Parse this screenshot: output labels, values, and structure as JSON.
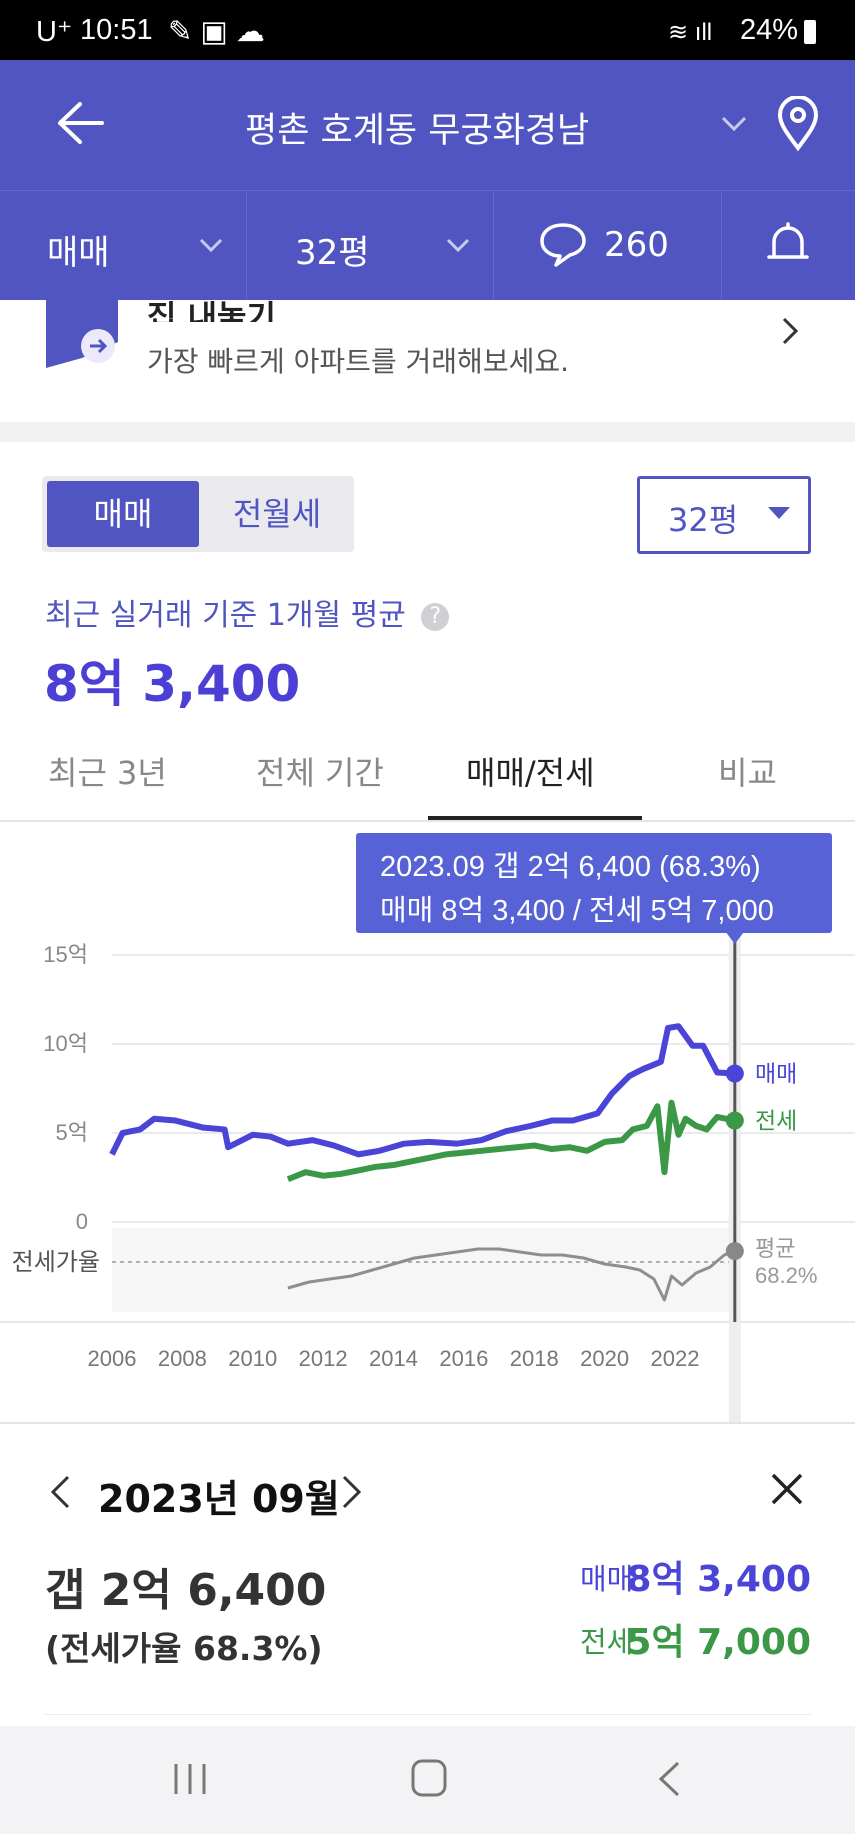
{
  "status_bar": {
    "time": "10:51",
    "carrier": "U⁺",
    "battery": "24%"
  },
  "header": {
    "title": "평촌 호계동 무궁화경남"
  },
  "subbar": {
    "trade_type": "매매",
    "size": "32평",
    "comments": "260"
  },
  "banner": {
    "title": "집 내놓기",
    "subtitle": "가장 빠르게 아파트를 거래해보세요."
  },
  "price_section": {
    "toggle": {
      "active": "매매",
      "inactive": "전월세"
    },
    "size_select": "32평",
    "caption": "최근 실거래 기준 1개월 평균",
    "value": "8억 3,400"
  },
  "period_tabs": [
    {
      "label": "최근 3년",
      "active": false
    },
    {
      "label": "전체 기간",
      "active": false
    },
    {
      "label": "매매/전세",
      "active": true
    },
    {
      "label": "비교",
      "active": false
    }
  ],
  "tooltip": {
    "line1": "2023.09  갭 2억 6,400 (68.3%)",
    "line2": "매매 8억 3,400 / 전세 5억 7,000"
  },
  "chart_data": {
    "type": "line",
    "title": "",
    "y_ticks": [
      "15억",
      "10억",
      "5억",
      "0"
    ],
    "ylim": [
      0,
      15
    ],
    "x_ticks": [
      "2006",
      "2008",
      "2010",
      "2012",
      "2014",
      "2016",
      "2018",
      "2020",
      "2022"
    ],
    "series": [
      {
        "name": "매매",
        "color": "#4a45d6",
        "x": [
          2006.0,
          2006.3,
          2006.8,
          2007.2,
          2007.8,
          2008.6,
          2009.2,
          2009.3,
          2010.0,
          2010.5,
          2011.0,
          2011.7,
          2012.3,
          2013.0,
          2013.6,
          2014.3,
          2015.0,
          2015.8,
          2016.5,
          2017.2,
          2017.9,
          2018.5,
          2019.1,
          2019.8,
          2020.2,
          2020.7,
          2021.1,
          2021.6,
          2021.8,
          2022.1,
          2022.5,
          2022.8,
          2023.2,
          2023.7
        ],
        "values": [
          3.8,
          5.0,
          5.2,
          5.8,
          5.7,
          5.3,
          5.2,
          4.2,
          4.9,
          4.8,
          4.4,
          4.6,
          4.3,
          3.8,
          4.0,
          4.4,
          4.5,
          4.4,
          4.6,
          5.1,
          5.4,
          5.7,
          5.7,
          6.1,
          7.2,
          8.2,
          8.6,
          9.0,
          10.9,
          11.0,
          9.9,
          9.9,
          8.4,
          8.34
        ]
      },
      {
        "name": "전세",
        "color": "#3a9846",
        "x": [
          2011.0,
          2011.5,
          2012.0,
          2012.5,
          2013.0,
          2013.5,
          2014.0,
          2014.5,
          2015.0,
          2015.5,
          2016.0,
          2016.5,
          2017.0,
          2017.5,
          2018.0,
          2018.5,
          2019.0,
          2019.5,
          2020.0,
          2020.5,
          2020.8,
          2021.2,
          2021.5,
          2021.7,
          2021.9,
          2022.1,
          2022.3,
          2022.6,
          2022.9,
          2023.2,
          2023.7
        ],
        "values": [
          2.4,
          2.8,
          2.6,
          2.7,
          2.9,
          3.1,
          3.2,
          3.4,
          3.6,
          3.8,
          3.9,
          4.0,
          4.1,
          4.2,
          4.3,
          4.1,
          4.2,
          4.0,
          4.5,
          4.6,
          5.2,
          5.4,
          6.5,
          2.8,
          6.7,
          4.9,
          5.8,
          5.4,
          5.2,
          5.9,
          5.7
        ]
      }
    ],
    "ratio_label": "전세가율",
    "ratio_series": {
      "name": "평균",
      "color": "#8e8e8e",
      "x": [
        2011.0,
        2011.6,
        2012.2,
        2012.8,
        2013.4,
        2014.0,
        2014.6,
        2015.2,
        2015.8,
        2016.4,
        2017.0,
        2017.6,
        2018.2,
        2018.8,
        2019.4,
        2020.0,
        2020.6,
        2021.0,
        2021.4,
        2021.7,
        2021.9,
        2022.2,
        2022.6,
        2023.0,
        2023.4,
        2023.7
      ],
      "values": [
        56,
        58,
        59,
        60,
        62,
        64,
        66,
        67,
        68,
        69,
        69,
        68,
        67,
        67,
        66,
        64,
        63,
        62,
        59,
        52,
        60,
        57,
        61,
        63,
        67,
        68.3
      ]
    },
    "ratio_average_label": "평균",
    "ratio_average_value": "68.2%",
    "selected_x": 2023.7,
    "end_labels": {
      "sale": "매매",
      "lease": "전세"
    }
  },
  "detail": {
    "month": "2023년 09월",
    "gap": "갭 2억 6,400",
    "ratio": "(전세가율 68.3%)",
    "sale_label": "매매",
    "sale_value": "8억 3,400",
    "lease_label": "전세",
    "lease_value": "5억 7,000"
  },
  "colors": {
    "primary": "#5055c2",
    "sale": "#4a45d6",
    "lease": "#3a9846",
    "ratio": "#8e8e8e"
  }
}
